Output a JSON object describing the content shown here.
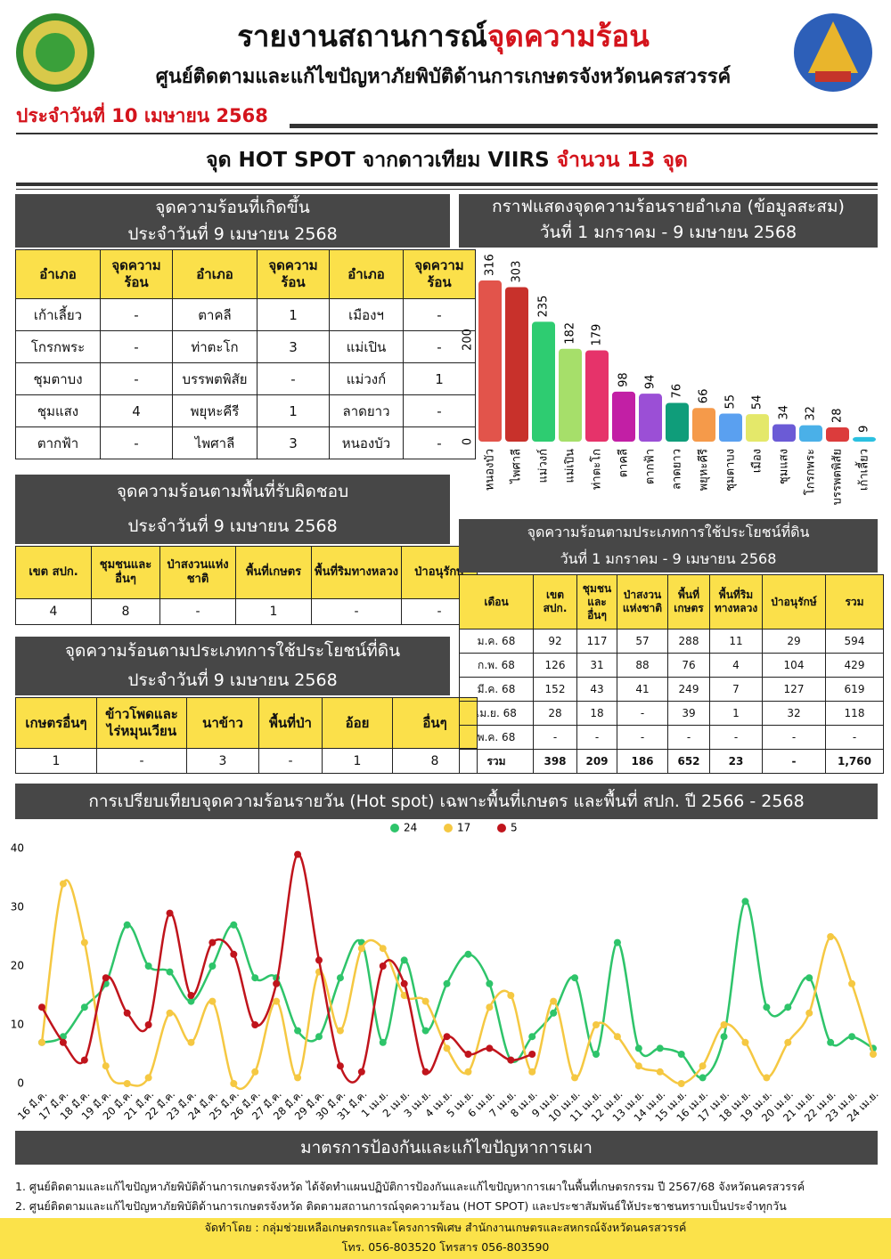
{
  "header": {
    "title": "รายงานสถานการณ์",
    "title_highlight": "จุดความร้อน",
    "subtitle": "ศูนย์ติดตามและแก้ไขปัญหาภัยพิบัติด้านการเกษตรจังหวัดนครสวรรค์",
    "date": "ประจำวันที่ 10 เมษายน 2568"
  },
  "banner": {
    "text": "จุด HOT SPOT จากดาวเทียม VIIRS",
    "highlight": "จำนวน 13 จุด"
  },
  "district_table": {
    "title": [
      "จุดความร้อนที่เกิดขึ้น",
      "ประจำวันที่ 9 เมษายน 2568"
    ],
    "headers": [
      "อำเภอ",
      "จุดความร้อน",
      "อำเภอ",
      "จุดความร้อน",
      "อำเภอ",
      "จุดความร้อน"
    ],
    "rows": [
      [
        "เก้าเลี้ยว",
        "-",
        "ตาคลี",
        "1",
        "เมืองฯ",
        "-"
      ],
      [
        "โกรกพระ",
        "-",
        "ท่าตะโก",
        "3",
        "แม่เปิน",
        "-"
      ],
      [
        "ชุมตาบง",
        "-",
        "บรรพตพิสัย",
        "-",
        "แม่วงก์",
        "1"
      ],
      [
        "ชุมแสง",
        "4",
        "พยุหะคีรี",
        "1",
        "ลาดยาว",
        "-"
      ],
      [
        "ตากฟ้า",
        "-",
        "ไพศาลี",
        "3",
        "หนองบัว",
        "-"
      ]
    ]
  },
  "area_table": {
    "title": [
      "จุดความร้อนตามพื้นที่รับผิดชอบ",
      "ประจำวันที่ 9 เมษายน 2568"
    ],
    "headers": [
      "เขต สปก.",
      "ชุมชนและอื่นๆ",
      "ป่าสงวนแห่งชาติ",
      "พื้นที่เกษตร",
      "พื้นที่ริมทางหลวง",
      "ป่าอนุรักษ์"
    ],
    "rows": [
      [
        "4",
        "8",
        "-",
        "1",
        "-",
        "-"
      ]
    ]
  },
  "landuse_table": {
    "title": [
      "จุดความร้อนตามประเภทการใช้ประโยชน์ที่ดิน",
      "ประจำวันที่ 9 เมษายน 2568"
    ],
    "headers": [
      "เกษตรอื่นๆ",
      "ข้าวโพดและไร่หมุนเวียน",
      "นาข้าว",
      "พื้นที่ป่า",
      "อ้อย",
      "อื่นๆ"
    ],
    "rows": [
      [
        "1",
        "-",
        "3",
        "-",
        "1",
        "8"
      ]
    ]
  },
  "monthly_table": {
    "title": [
      "จุดความร้อนตามประเภทการใช้ประโยชน์ที่ดิน",
      "วันที่ 1 มกราคม - 9 เมษายน 2568"
    ],
    "headers": [
      "เดือน",
      "เขต สปก.",
      "ชุมชนและอื่นๆ",
      "ป่าสงวนแห่งชาติ",
      "พื้นที่เกษตร",
      "พื้นที่ริมทางหลวง",
      "ป่าอนุรักษ์",
      "รวม"
    ],
    "rows": [
      [
        "ม.ค. 68",
        "92",
        "117",
        "57",
        "288",
        "11",
        "29",
        "594"
      ],
      [
        "ก.พ. 68",
        "126",
        "31",
        "88",
        "76",
        "4",
        "104",
        "429"
      ],
      [
        "มี.ค. 68",
        "152",
        "43",
        "41",
        "249",
        "7",
        "127",
        "619"
      ],
      [
        "เม.ย. 68",
        "28",
        "18",
        "-",
        "39",
        "1",
        "32",
        "118"
      ],
      [
        "พ.ค. 68",
        "-",
        "-",
        "-",
        "-",
        "-",
        "-",
        "-"
      ],
      [
        "รวม",
        "398",
        "209",
        "186",
        "652",
        "23",
        "-",
        "1,760"
      ]
    ]
  },
  "chart_data": [
    {
      "type": "bar",
      "title": "กราฟแสดงจุดความร้อนรายอำเภอ (ข้อมูลสะสม)",
      "subtitle": "วันที่ 1 มกราคม - 9 เมษายน 2568",
      "categories": [
        "หนองบัว",
        "ไพศาลี",
        "แม่วงก์",
        "แม่เปิน",
        "ท่าตะโก",
        "ตาคลี",
        "ตากฟ้า",
        "ลาดยาว",
        "พยุหะคีรี",
        "ชุมตาบง",
        "เมือง",
        "ชุมแสง",
        "โกรกพระ",
        "บรรพตพิสัย",
        "เก้าเลี้ยว"
      ],
      "values": [
        316,
        303,
        235,
        182,
        179,
        98,
        94,
        76,
        66,
        55,
        54,
        34,
        32,
        28,
        9
      ],
      "colors": [
        "#e2544b",
        "#c8312b",
        "#2ecc71",
        "#a6df6a",
        "#e6336a",
        "#c21fa5",
        "#9b4fd6",
        "#0f9d7a",
        "#f59a4a",
        "#5aa0f0",
        "#e4e86a",
        "#6b5bd6",
        "#4ab0e8",
        "#dc3c3c",
        "#2bc0e0"
      ],
      "ylim": [
        0,
        330
      ],
      "yticks": [
        0,
        200
      ]
    },
    {
      "type": "line",
      "title": "การเปรียบเทียบจุดความร้อนรายวัน (Hot spot)  เฉพาะพื้นที่เกษตร และพื้นที่ สปก. ปี 2566 - 2568",
      "categories": [
        "16 มี.ค.",
        "17 มี.ค.",
        "18 มี.ค.",
        "19 มี.ค.",
        "20 มี.ค.",
        "21 มี.ค.",
        "22 มี.ค.",
        "23 มี.ค.",
        "24 มี.ค.",
        "25 มี.ค.",
        "26 มี.ค.",
        "27 มี.ค.",
        "28 มี.ค.",
        "29 มี.ค.",
        "30 มี.ค.",
        "31 มี.ค.",
        "1 เม.ย.",
        "2 เม.ย.",
        "3 เม.ย.",
        "4 เม.ย.",
        "5 เม.ย.",
        "6 เม.ย.",
        "7 เม.ย.",
        "8 เม.ย.",
        "9 เม.ย.",
        "10 เม.ย.",
        "11 เม.ย.",
        "12 เม.ย.",
        "13 เม.ย.",
        "14 เม.ย.",
        "15 เม.ย.",
        "16 เม.ย.",
        "17 เม.ย.",
        "18 เม.ย.",
        "19 เม.ย.",
        "20 เม.ย.",
        "21 เม.ย.",
        "22 เม.ย.",
        "23 เม.ย.",
        "24 เม.ย."
      ],
      "series": [
        {
          "name": "24",
          "color": "#2ec46a",
          "values": [
            7,
            8,
            13,
            17,
            27,
            20,
            19,
            14,
            20,
            27,
            18,
            18,
            9,
            8,
            18,
            24,
            7,
            21,
            9,
            17,
            22,
            17,
            4,
            8,
            12,
            18,
            5,
            24,
            6,
            6,
            5,
            1,
            8,
            31,
            13,
            13,
            18,
            7,
            8,
            6
          ]
        },
        {
          "name": "17",
          "color": "#f5c842",
          "values": [
            7,
            34,
            24,
            3,
            0,
            1,
            12,
            7,
            14,
            0,
            2,
            14,
            1,
            19,
            9,
            23,
            23,
            15,
            14,
            6,
            2,
            13,
            15,
            2,
            14,
            1,
            10,
            8,
            3,
            2,
            0,
            3,
            10,
            7,
            1,
            7,
            12,
            25,
            17,
            5
          ]
        },
        {
          "name": "5",
          "color": "#c0141c",
          "values": [
            13,
            7,
            4,
            18,
            12,
            10,
            29,
            15,
            24,
            22,
            10,
            17,
            39,
            21,
            3,
            2,
            20,
            17,
            2,
            8,
            5,
            6,
            4,
            5,
            null,
            null,
            null,
            null,
            null,
            null,
            null,
            null,
            null,
            null,
            null,
            null,
            null,
            null,
            null,
            null
          ]
        }
      ],
      "ylim": [
        0,
        40
      ],
      "yticks": [
        0,
        10,
        20,
        30,
        40
      ],
      "legend": "top"
    }
  ],
  "measures": {
    "title": "มาตรการป้องกันและแก้ไขปัญหาการเผา",
    "items": [
      "1. ศูนย์ติดตามและแก้ไขปัญหาภัยพิบัติด้านการเกษตรจังหวัด ได้จัดทำแผนปฏิบัติการป้องกันและแก้ไขปัญหาการเผาในพื้นที่เกษตรกรรม ปี 2567/68 จังหวัดนครสวรรค์",
      "2. ศูนย์ติดตามและแก้ไขปัญหาภัยพิบัติด้านการเกษตรจังหวัด ติดตามสถานการณ์จุดความร้อน (HOT SPOT) และประชาสัมพันธ์ให้ประชาชนทราบเป็นประจำทุกวัน"
    ]
  },
  "footer": {
    "credit": "จัดทำโดย : กลุ่มช่วยเหลือเกษตรกรและโครงการพิเศษ สำนักงานเกษตรและสหกรณ์จังหวัดนครสวรรค์",
    "contact": "โทร. 056-803520 โทรสาร 056-803590"
  }
}
